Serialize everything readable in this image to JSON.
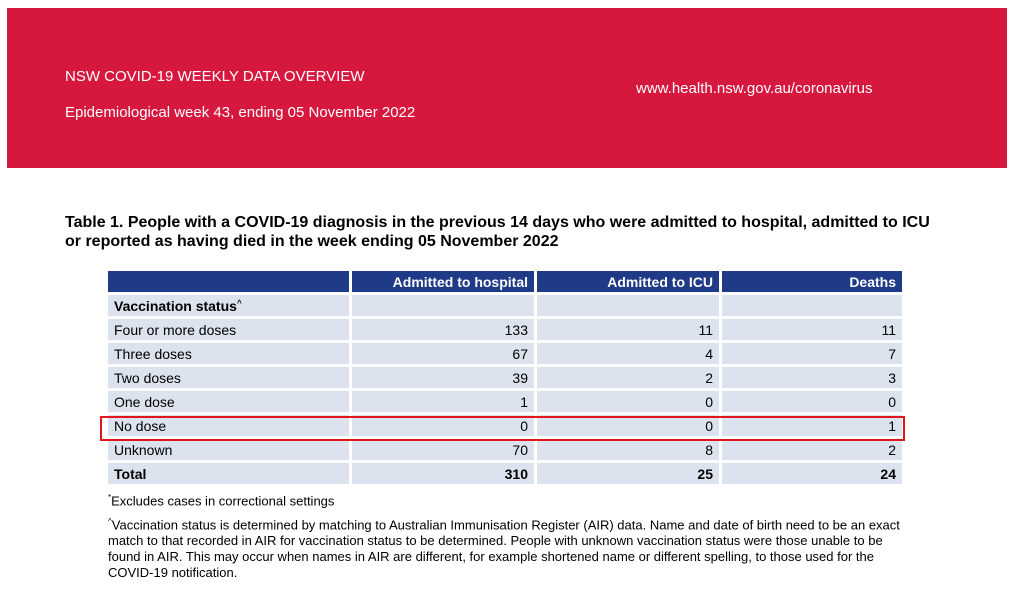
{
  "header": {
    "title": "NSW COVID-19 WEEKLY DATA OVERVIEW",
    "subtitle": "Epidemiological week 43, ending 05 November 2022",
    "url": "www.health.nsw.gov.au/coronavirus",
    "background_color": "#d6173e"
  },
  "table": {
    "title": "Table 1. People with a COVID-19 diagnosis in the previous 14 days who were admitted to hospital, admitted to ICU or reported as having died in the week ending 05 November 2022",
    "columns": [
      "",
      "Admitted to hospital",
      "Admitted to ICU",
      "Deaths"
    ],
    "section_label": "Vaccination status",
    "section_marker": "^",
    "rows": [
      [
        "Four or more doses",
        "133",
        "11",
        "11"
      ],
      [
        "Three doses",
        "67",
        "4",
        "7"
      ],
      [
        "Two doses",
        "39",
        "2",
        "3"
      ],
      [
        "One dose",
        "1",
        "0",
        "0"
      ],
      [
        "No dose",
        "0",
        "0",
        "1"
      ],
      [
        "Unknown",
        "70",
        "8",
        "2"
      ]
    ],
    "total": [
      "Total",
      "310",
      "25",
      "24"
    ],
    "header_color": "#1f3a86",
    "row_color": "#dce3ee",
    "highlight_color": "#e0161f"
  },
  "footnotes": {
    "note1_marker": "*",
    "note1": "Excludes cases in correctional settings",
    "note2_marker": "^",
    "note2": "Vaccination status is determined by matching to Australian Immunisation Register (AIR) data. Name and date of birth need to be an exact match to that recorded in AIR for vaccination status to be determined. People with unknown vaccination status were those unable to be found in AIR. This may occur when names in AIR are different, for example shortened name or different spelling, to those used for the COVID-19 notification."
  }
}
